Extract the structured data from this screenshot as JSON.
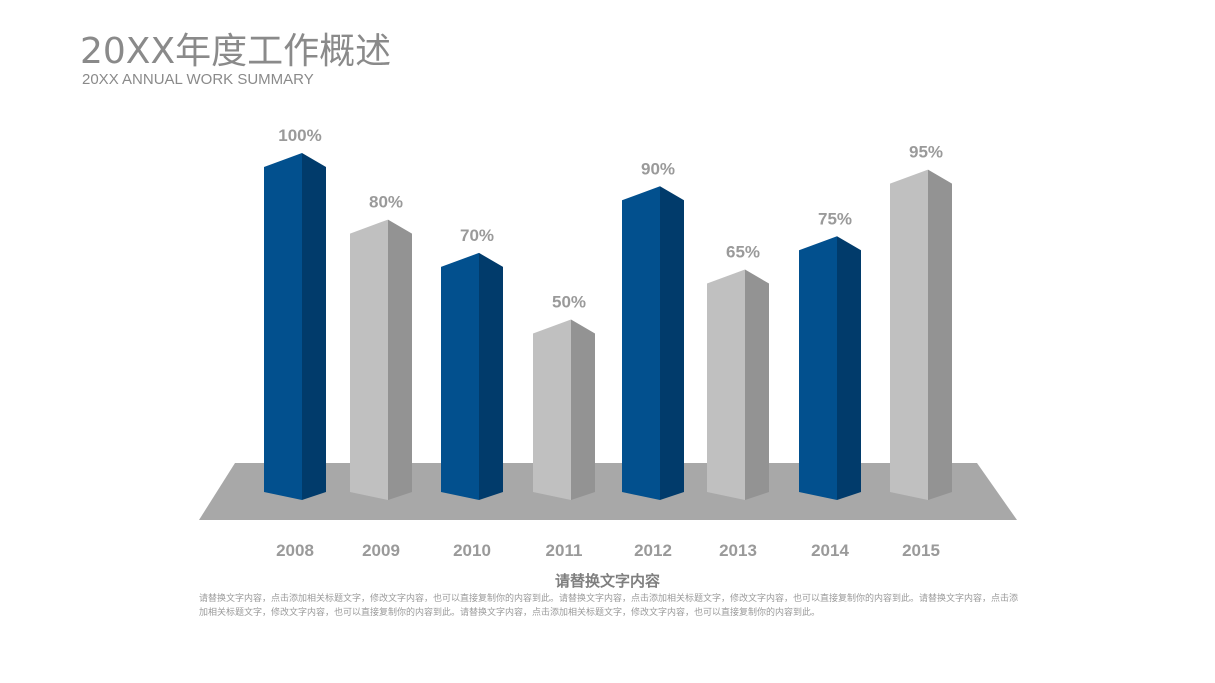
{
  "header": {
    "title": "20XX年度工作概述",
    "subtitle": "20XX ANNUAL WORK SUMMARY"
  },
  "chart_data": {
    "type": "bar",
    "categories": [
      "2008",
      "2009",
      "2010",
      "2011",
      "2012",
      "2013",
      "2014",
      "2015"
    ],
    "values": [
      100,
      80,
      70,
      50,
      90,
      65,
      75,
      95
    ],
    "data_labels": [
      "100%",
      "80%",
      "70%",
      "50%",
      "90%",
      "65%",
      "75%",
      "95%"
    ],
    "value_unit": "%",
    "ylim": [
      0,
      100
    ],
    "grid": false,
    "style": "3d-columns",
    "colors": {
      "accent_front": "#02508e",
      "accent_side": "#013b6b",
      "neutral_front": "#c0c0c0",
      "neutral_side": "#939393",
      "floor": "#a8a8a8"
    },
    "bar_color_roles": [
      "accent",
      "neutral",
      "accent",
      "neutral",
      "accent",
      "neutral",
      "accent",
      "neutral"
    ]
  },
  "caption": {
    "title": "请替换文字内容",
    "body": "请替换文字内容，点击添加相关标题文字，修改文字内容，也可以直接复制你的内容到此。请替换文字内容，点击添加相关标题文字，修改文字内容，也可以直接复制你的内容到此。请替换文字内容，点击添加相关标题文字，修改文字内容，也可以直接复制你的内容到此。请替换文字内容，点击添加相关标题文字，修改文字内容，也可以直接复制你的内容到此。"
  }
}
